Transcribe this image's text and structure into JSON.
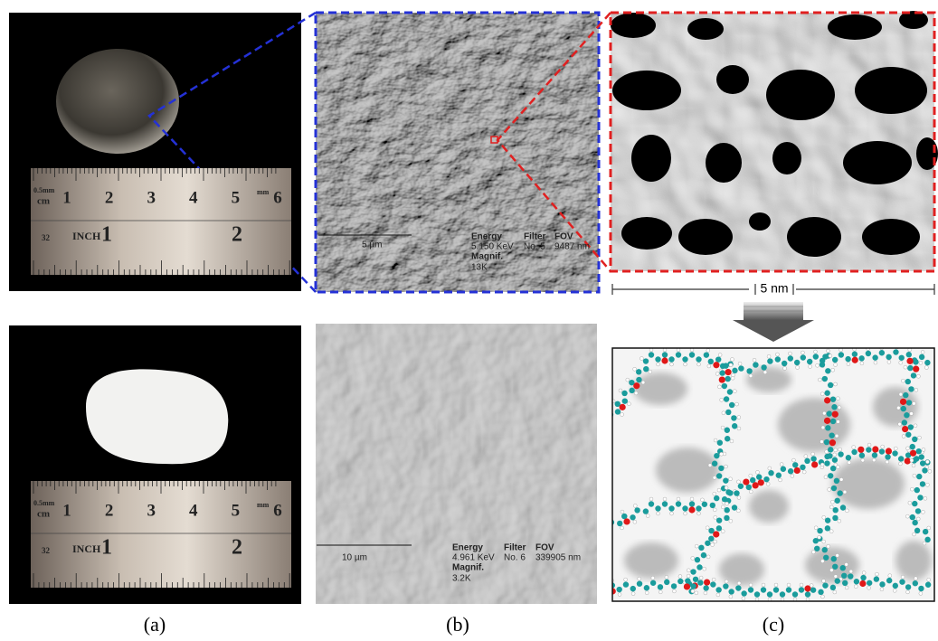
{
  "panel_labels": [
    "(a)",
    "(b)",
    "(c)"
  ],
  "ruler": {
    "fine_unit": "0.5mm",
    "metric_unit": "cm",
    "mm_label": "mm",
    "cm_numbers": [
      "1",
      "2",
      "3",
      "4",
      "5",
      "6"
    ],
    "edge_number": "32",
    "inch_label": "INCH",
    "inch_numbers": [
      "1",
      "2"
    ]
  },
  "sem_top": {
    "scale": "5 µm",
    "energy": "Energy",
    "energy_value": "5.150 KeV",
    "filter": "Filter",
    "filter_value": "No. 5",
    "fov": "FOV",
    "fov_value": "9487 nm",
    "magnif": "Magnif.",
    "magnif_value": "13K"
  },
  "sem_bottom": {
    "scale": "10 µm",
    "energy": "Energy",
    "energy_value": "4.961 KeV",
    "filter": "Filter",
    "filter_value": "No. 6",
    "fov": "FOV",
    "fov_value": "339905 nm",
    "magnif": "Magnif.",
    "magnif_value": "3.2K"
  },
  "simulation": {
    "scale": "5 nm"
  }
}
